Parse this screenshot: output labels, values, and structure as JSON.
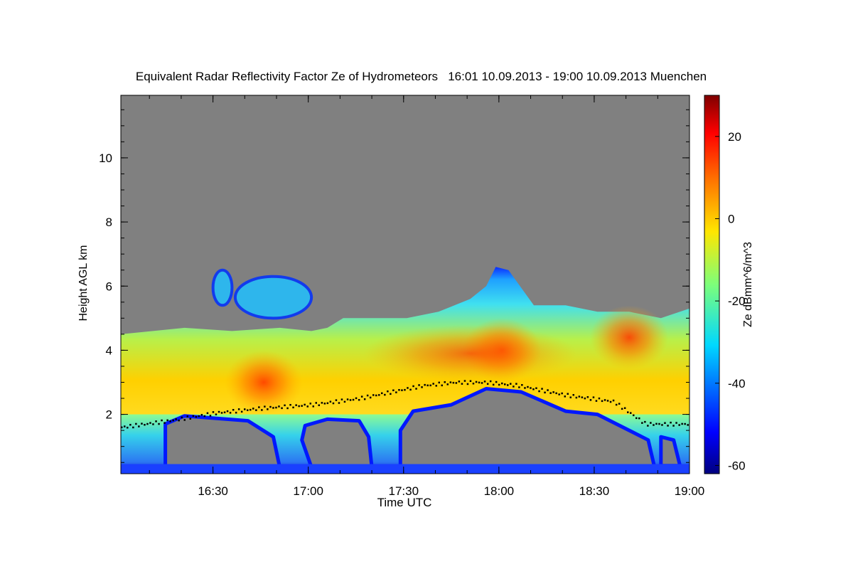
{
  "chart_data": {
    "type": "heatmap",
    "title": "Equivalent Radar Reflectivity Factor Ze of Hydrometeors   16:01 10.09.2013 - 19:00 10.09.2013 Muenchen",
    "xlabel": "Time UTC",
    "ylabel": "Height AGL km",
    "colorbar_label": "Ze dBmm^6/m^3",
    "x_tick_labels": [
      "16:30",
      "17:00",
      "17:30",
      "18:00",
      "18:30",
      "19:00"
    ],
    "x_tick_minutes": [
      29,
      59,
      89,
      119,
      149,
      179
    ],
    "xlim_minutes": [
      0,
      179
    ],
    "y_ticks": [
      2,
      4,
      6,
      8,
      10
    ],
    "ylim": [
      0.15,
      11.95
    ],
    "colorbar_ticks": [
      20,
      0,
      -20,
      -40,
      -60
    ],
    "colorbar_range": [
      -62,
      30
    ],
    "no_data_color": "#808080",
    "colormap": "jet",
    "cloud_top_km": [
      [
        0,
        4.5
      ],
      [
        20,
        4.7
      ],
      [
        35,
        4.6
      ],
      [
        50,
        4.7
      ],
      [
        60,
        4.6
      ],
      [
        65,
        4.7
      ],
      [
        70,
        5.0
      ],
      [
        80,
        5.0
      ],
      [
        90,
        5.0
      ],
      [
        100,
        5.2
      ],
      [
        110,
        5.6
      ],
      [
        115,
        6.0
      ],
      [
        118,
        6.6
      ],
      [
        122,
        6.5
      ],
      [
        130,
        5.4
      ],
      [
        140,
        5.4
      ],
      [
        150,
        5.2
      ],
      [
        160,
        5.2
      ],
      [
        170,
        5.0
      ],
      [
        179,
        5.3
      ]
    ],
    "upper_cloud_fragments": [
      {
        "t_start": 29,
        "t_end": 35,
        "base_km": 5.4,
        "top_km": 6.5
      },
      {
        "t_start": 36,
        "t_end": 60,
        "base_km": 5.0,
        "top_km": 6.3
      }
    ],
    "peak_reflectivity_dbz": [
      {
        "t": 45,
        "height_km": 3.0,
        "value": 5
      },
      {
        "t": 120,
        "height_km": 4.0,
        "value": 12
      },
      {
        "t": 160,
        "height_km": 4.4,
        "value": 12
      }
    ],
    "cloud_base_km": [
      [
        0,
        1.6
      ],
      [
        15,
        1.8
      ],
      [
        30,
        2.05
      ],
      [
        45,
        2.2
      ],
      [
        60,
        2.3
      ],
      [
        75,
        2.5
      ],
      [
        85,
        2.7
      ],
      [
        95,
        2.9
      ],
      [
        105,
        3.0
      ],
      [
        115,
        3.0
      ],
      [
        125,
        2.9
      ],
      [
        140,
        2.6
      ],
      [
        155,
        2.4
      ],
      [
        165,
        1.7
      ],
      [
        179,
        1.7
      ]
    ]
  }
}
